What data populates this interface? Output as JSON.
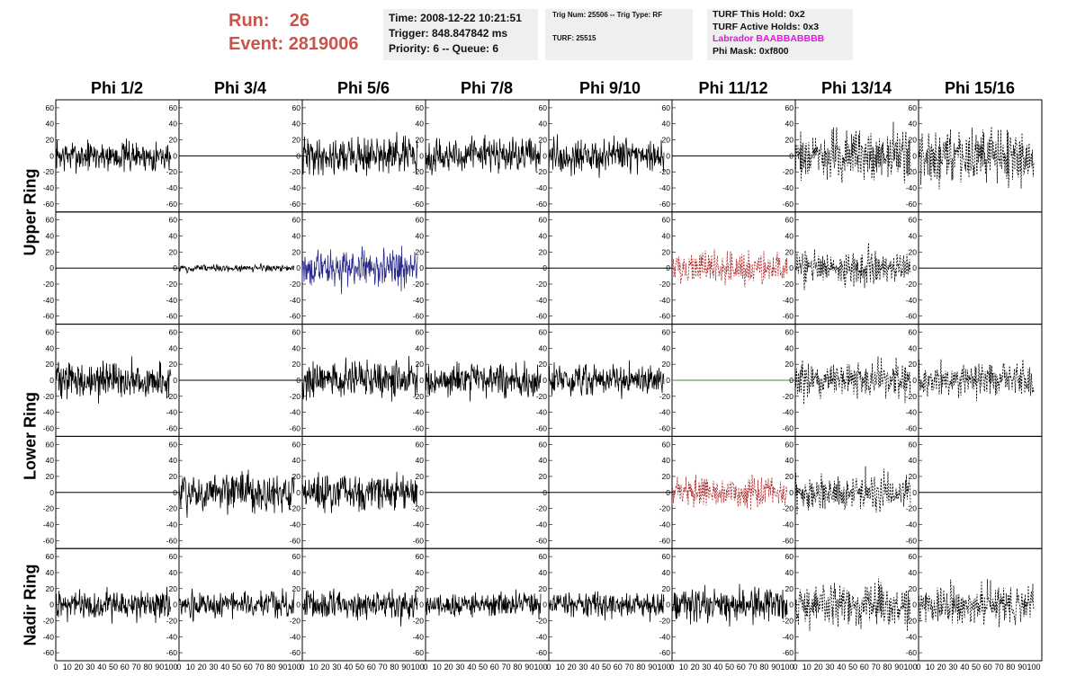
{
  "header": {
    "run_label": "Run:",
    "run_value": "26",
    "event_label": "Event:",
    "event_value": "2819006",
    "time": "Time: 2008-12-22 10:21:51",
    "trigger": "Trigger: 848.847842 ms",
    "priority": "Priority: 6 -- Queue: 6",
    "trig_num": "Trig Num: 25506 -- Trig Type: RF",
    "turf": "TURF: 25515",
    "turf_hold": "TURF This Hold: 0x2",
    "turf_active": "TURF Active Holds: 0x3",
    "labrador": "Labrador BAABBABBBB",
    "phi_mask": "Phi Mask: 0xf800"
  },
  "chart_data": {
    "type": "line",
    "columns": [
      "Phi 1/2",
      "Phi 3/4",
      "Phi 5/6",
      "Phi 7/8",
      "Phi 9/10",
      "Phi 11/12",
      "Phi 13/14",
      "Phi 15/16"
    ],
    "row_groups": [
      {
        "label": "Upper Ring",
        "rows": [
          0,
          1
        ]
      },
      {
        "label": "Lower Ring",
        "rows": [
          2,
          3
        ]
      },
      {
        "label": "Nadir Ring",
        "rows": [
          4
        ]
      }
    ],
    "ylim": [
      -70,
      70
    ],
    "xlim": [
      0,
      100
    ],
    "y_ticks": [
      -60,
      -40,
      -20,
      0,
      20,
      40,
      60
    ],
    "x_tick_labels": [
      "0",
      "10",
      "20",
      "30",
      "40",
      "50",
      "60",
      "70",
      "80",
      "90",
      "100"
    ],
    "colors": {
      "solid": "#000000",
      "blue": "#2b2b8c",
      "red": "#b02a2a",
      "green": "#2e9b2e",
      "dashed": "#000000"
    },
    "panels": [
      [
        {
          "style": "solid",
          "amp": 13
        },
        {
          "style": "flat",
          "amp": 0
        },
        {
          "style": "solid",
          "amp": 16
        },
        {
          "style": "solid",
          "amp": 14
        },
        {
          "style": "solid",
          "amp": 15
        },
        {
          "style": "flat",
          "amp": 0
        },
        {
          "style": "dashed",
          "amp": 22
        },
        {
          "style": "dashed",
          "amp": 22
        }
      ],
      [
        {
          "style": "flat",
          "amp": 0
        },
        {
          "style": "solid",
          "amp": 3
        },
        {
          "style": "blue",
          "amp": 15
        },
        {
          "style": "flat",
          "amp": 0
        },
        {
          "style": "flat",
          "amp": 0
        },
        {
          "style": "red",
          "amp": 13
        },
        {
          "style": "dashed",
          "amp": 14
        },
        {
          "style": "flat",
          "amp": 0
        }
      ],
      [
        {
          "style": "solid",
          "amp": 15
        },
        {
          "style": "flat",
          "amp": 0
        },
        {
          "style": "solid",
          "amp": 15
        },
        {
          "style": "solid",
          "amp": 14
        },
        {
          "style": "solid",
          "amp": 13
        },
        {
          "style": "green",
          "amp": 0
        },
        {
          "style": "dashed",
          "amp": 15
        },
        {
          "style": "dashed",
          "amp": 14
        }
      ],
      [
        {
          "style": "flat",
          "amp": 0
        },
        {
          "style": "solid",
          "amp": 17
        },
        {
          "style": "solid",
          "amp": 16
        },
        {
          "style": "flat",
          "amp": 0
        },
        {
          "style": "flat",
          "amp": 0
        },
        {
          "style": "red",
          "amp": 12
        },
        {
          "style": "dashed",
          "amp": 15
        },
        {
          "style": "flat",
          "amp": 0
        }
      ],
      [
        {
          "style": "solid",
          "amp": 13
        },
        {
          "style": "solid",
          "amp": 11
        },
        {
          "style": "solid",
          "amp": 12
        },
        {
          "style": "solid",
          "amp": 10
        },
        {
          "style": "solid",
          "amp": 11
        },
        {
          "style": "solid",
          "amp": 15
        },
        {
          "style": "dashed",
          "amp": 18
        },
        {
          "style": "dashed",
          "amp": 16
        }
      ]
    ]
  }
}
